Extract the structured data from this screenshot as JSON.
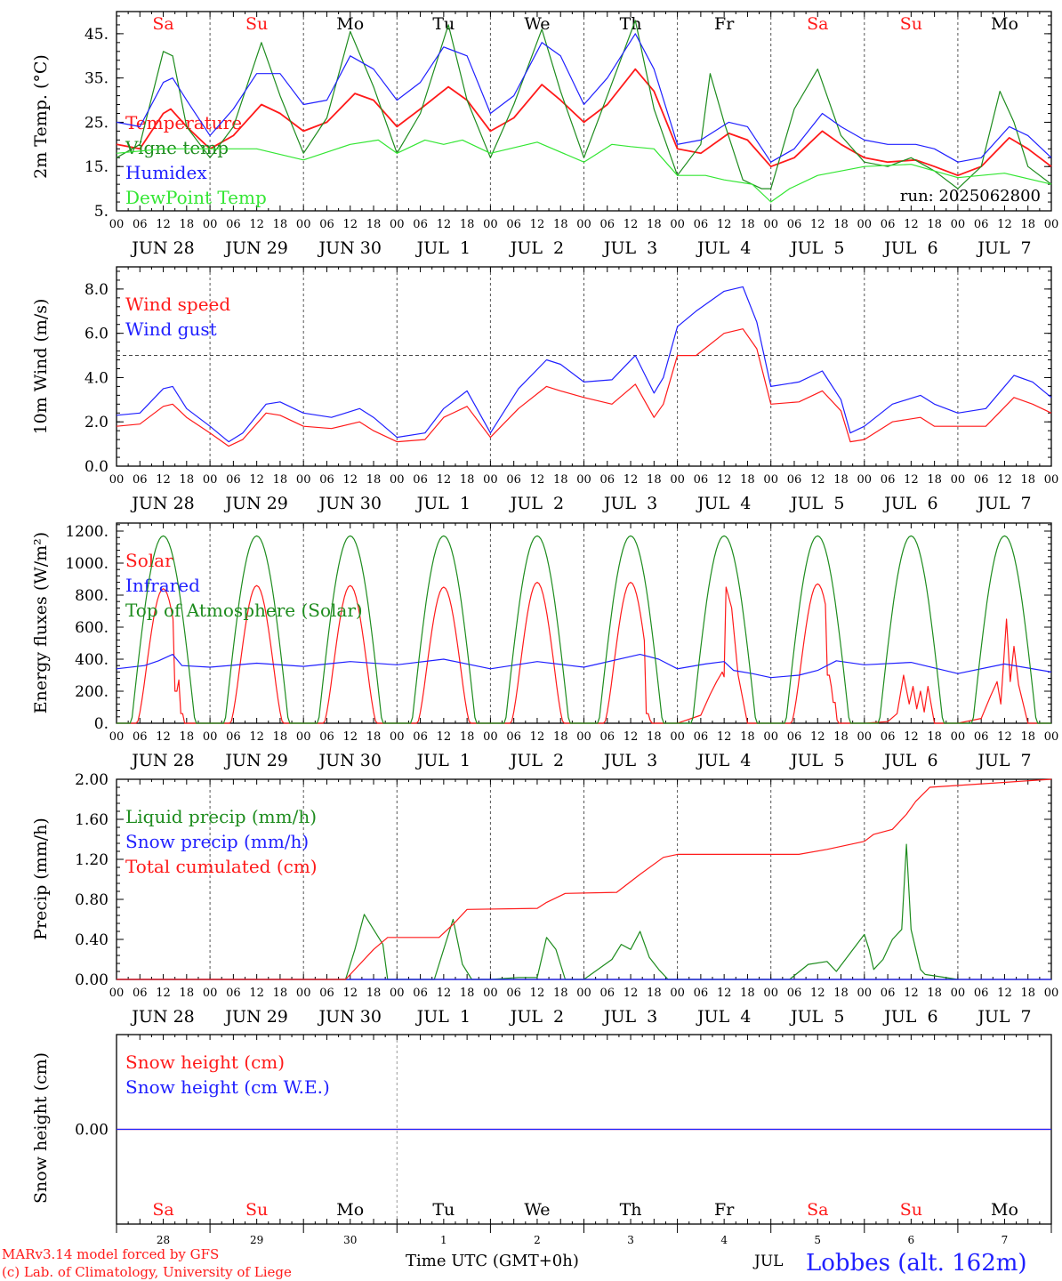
{
  "colors": {
    "red": "#ff1a1a",
    "green": "#1e8c1e",
    "blue": "#2020ff",
    "light_green": "#33e633",
    "black": "#000000",
    "grid": "#444444"
  },
  "x_axis": {
    "hour_ticks": [
      "00",
      "06",
      "12",
      "18"
    ],
    "day_labels": [
      "JUN 28",
      "JUN 29",
      "JUN 30",
      "JUL  1",
      "JUL  2",
      "JUL  3",
      "JUL  4",
      "JUL  5",
      "JUL  6",
      "JUL  7"
    ],
    "weekdays": [
      "Sa",
      "Su",
      "Mo",
      "Tu",
      "We",
      "Th",
      "Fr",
      "Sa",
      "Su",
      "Mo"
    ],
    "weekend_index": [
      0,
      1,
      7,
      8
    ],
    "bottom_day_numbers": [
      "28",
      "29",
      "30",
      "1",
      "2",
      "3",
      "4",
      "5",
      "6",
      "7"
    ],
    "month_label": "JUL",
    "title": "Time UTC (GMT+0h)"
  },
  "credits": {
    "line1": "MARv3.14 model forced by GFS",
    "line2": "(c) Lab. of Climatology, University of Liege"
  },
  "station": "Lobbes (alt. 162m)",
  "chart_data": [
    {
      "type": "line",
      "ylabel": "2m Temp. (°C)",
      "ylim": [
        5,
        50
      ],
      "yticks": [
        5,
        15,
        25,
        35,
        45
      ],
      "ytick_labels": [
        "5.",
        "15.",
        "25.",
        "35.",
        "45."
      ],
      "run": "run: 2025062800",
      "x_unit": "days since JUN 28 00 UTC",
      "series": [
        {
          "name": "Temperature",
          "color": "#ff1a1a",
          "x": [
            0,
            0.25,
            0.5,
            0.58,
            0.75,
            1,
            1.25,
            1.55,
            1.75,
            2,
            2.25,
            2.55,
            2.75,
            3,
            3.25,
            3.55,
            3.75,
            4,
            4.25,
            4.55,
            4.75,
            5,
            5.25,
            5.55,
            5.75,
            6,
            6.25,
            6.55,
            6.75,
            7,
            7.25,
            7.55,
            7.75,
            8,
            8.25,
            8.55,
            8.75,
            9,
            9.25,
            9.55,
            9.75,
            10
          ],
          "y": [
            20,
            19,
            27,
            28,
            24,
            19,
            22,
            29,
            27,
            23,
            25,
            31.5,
            30,
            24,
            28,
            33,
            30,
            23,
            26,
            33.5,
            30,
            25,
            29,
            37,
            32,
            19,
            18,
            22.5,
            21,
            15,
            17,
            23,
            20,
            17,
            16,
            16.5,
            15,
            13,
            15,
            21.5,
            19,
            15
          ]
        },
        {
          "name": "Vigne temp",
          "color": "#1e8c1e",
          "x": [
            0,
            0.25,
            0.5,
            0.6,
            0.75,
            1,
            1.25,
            1.55,
            1.75,
            2,
            2.25,
            2.5,
            2.75,
            3,
            3.25,
            3.55,
            3.75,
            4,
            4.25,
            4.55,
            4.75,
            5,
            5.25,
            5.55,
            5.75,
            6,
            6.25,
            6.35,
            6.5,
            6.7,
            6.9,
            7,
            7.25,
            7.5,
            7.75,
            8,
            8.25,
            8.5,
            8.75,
            9,
            9.25,
            9.45,
            9.6,
            9.75,
            10
          ],
          "y": [
            17,
            20,
            41,
            40,
            24,
            17,
            24,
            43,
            31,
            18,
            26,
            45.5,
            33,
            18,
            27,
            47,
            30,
            17,
            29,
            46,
            32,
            17,
            31,
            48,
            28,
            13,
            20,
            36,
            25,
            12,
            10,
            10,
            28,
            37,
            22,
            16,
            15,
            17,
            14,
            10,
            15,
            32,
            25,
            15,
            11
          ]
        },
        {
          "name": "Humidex",
          "color": "#2020ff",
          "x": [
            0,
            0.25,
            0.5,
            0.6,
            0.75,
            1,
            1.25,
            1.5,
            1.75,
            2,
            2.25,
            2.5,
            2.75,
            3,
            3.25,
            3.5,
            3.75,
            4,
            4.25,
            4.55,
            4.75,
            5,
            5.25,
            5.55,
            5.75,
            6,
            6.25,
            6.55,
            6.75,
            7,
            7.25,
            7.55,
            7.75,
            8,
            8.25,
            8.55,
            8.75,
            9,
            9.25,
            9.55,
            9.75,
            10
          ],
          "y": [
            25,
            24,
            34,
            35,
            30,
            22,
            28,
            36,
            36,
            29,
            30,
            40,
            37,
            30,
            34,
            42,
            40,
            27,
            31,
            43,
            40,
            29,
            35,
            45,
            37,
            20,
            21,
            25,
            24,
            16,
            19,
            27,
            24,
            21,
            20,
            20,
            19,
            16,
            17,
            24,
            22,
            17
          ]
        },
        {
          "name": "DewPoint Temp",
          "color": "#33e633",
          "x": [
            0,
            0.5,
            1,
            1.5,
            2,
            2.5,
            2.8,
            3,
            3.3,
            3.5,
            3.7,
            4,
            4.5,
            5,
            5.3,
            5.5,
            5.75,
            6,
            6.3,
            6.5,
            6.8,
            7,
            7.2,
            7.5,
            8,
            8.5,
            9,
            9.5,
            10
          ],
          "y": [
            18,
            19,
            19,
            19,
            16.5,
            20,
            21,
            18,
            21,
            20,
            21,
            18,
            20.5,
            16,
            20,
            19.5,
            19,
            13,
            13,
            12,
            11,
            7,
            10,
            13,
            15,
            15.5,
            12.5,
            13.5,
            11
          ]
        }
      ]
    },
    {
      "type": "line",
      "ylabel": "10m Wind (m/s)",
      "ylim": [
        0,
        9
      ],
      "yticks": [
        0,
        2,
        4,
        6,
        8
      ],
      "ytick_labels": [
        "0.0",
        "2.0",
        "4.0",
        "6.0",
        "8.0"
      ],
      "reference_line": 5.0,
      "x_unit": "days since JUN 28 00 UTC",
      "series": [
        {
          "name": "Wind speed",
          "color": "#ff1a1a",
          "x": [
            0,
            0.25,
            0.5,
            0.6,
            0.75,
            1,
            1.2,
            1.35,
            1.6,
            1.75,
            2,
            2.3,
            2.6,
            2.75,
            3,
            3.3,
            3.5,
            3.75,
            4,
            4.3,
            4.6,
            4.75,
            5,
            5.3,
            5.55,
            5.75,
            5.85,
            6,
            6.2,
            6.5,
            6.7,
            6.85,
            7,
            7.3,
            7.55,
            7.75,
            7.85,
            8,
            8.3,
            8.6,
            8.75,
            9,
            9.3,
            9.6,
            9.8,
            10
          ],
          "y": [
            1.8,
            1.9,
            2.7,
            2.8,
            2.2,
            1.5,
            0.9,
            1.2,
            2.4,
            2.3,
            1.8,
            1.7,
            2.0,
            1.6,
            1.1,
            1.2,
            2.2,
            2.7,
            1.3,
            2.6,
            3.6,
            3.4,
            3.1,
            2.8,
            3.7,
            2.2,
            2.8,
            5.0,
            5.0,
            6.0,
            6.2,
            5.3,
            2.8,
            2.9,
            3.4,
            2.5,
            1.1,
            1.2,
            2.0,
            2.2,
            1.8,
            1.8,
            1.8,
            3.1,
            2.8,
            2.4
          ]
        },
        {
          "name": "Wind gust",
          "color": "#2020ff",
          "x": [
            0,
            0.25,
            0.5,
            0.6,
            0.75,
            1,
            1.2,
            1.35,
            1.6,
            1.75,
            2,
            2.3,
            2.6,
            2.75,
            3,
            3.3,
            3.5,
            3.75,
            4,
            4.3,
            4.6,
            4.75,
            5,
            5.3,
            5.55,
            5.75,
            5.85,
            6,
            6.2,
            6.5,
            6.7,
            6.85,
            7,
            7.3,
            7.55,
            7.75,
            7.85,
            8,
            8.3,
            8.6,
            8.75,
            9,
            9.3,
            9.6,
            9.8,
            10
          ],
          "y": [
            2.3,
            2.4,
            3.5,
            3.6,
            2.6,
            1.8,
            1.1,
            1.5,
            2.8,
            2.9,
            2.4,
            2.2,
            2.6,
            2.2,
            1.3,
            1.5,
            2.6,
            3.4,
            1.5,
            3.5,
            4.8,
            4.6,
            3.8,
            3.9,
            5.0,
            3.3,
            4.0,
            6.3,
            7.0,
            7.9,
            8.1,
            6.5,
            3.6,
            3.8,
            4.3,
            3.0,
            1.5,
            1.8,
            2.8,
            3.2,
            2.8,
            2.4,
            2.6,
            4.1,
            3.8,
            3.1
          ]
        }
      ]
    },
    {
      "type": "line",
      "ylabel": "Energy fluxes (W/m²)",
      "ylim": [
        0,
        1250
      ],
      "yticks": [
        0,
        200,
        400,
        600,
        800,
        1000,
        1200
      ],
      "ytick_labels": [
        "0.",
        "200.",
        "400.",
        "600.",
        "800.",
        "1000.",
        "1200."
      ],
      "x_unit": "days since JUN 28 00 UTC",
      "series": [
        {
          "name": "Solar",
          "color": "#ff1a1a",
          "peaks": [
            {
              "day": 0,
              "max": 840,
              "cut": 0.62,
              "after": [
                200,
                270,
                60
              ]
            },
            {
              "day": 1,
              "max": 860
            },
            {
              "day": 2,
              "max": 860
            },
            {
              "day": 3,
              "max": 850
            },
            {
              "day": 4,
              "max": 880
            },
            {
              "day": 5,
              "max": 880,
              "cut": 0.66,
              "after": [
                60,
                20
              ]
            },
            {
              "day": 6,
              "max": 850,
              "spiky": [
                0.25,
                50,
                0.35,
                180,
                0.42,
                260,
                0.48,
                320,
                0.5,
                290,
                0.52,
                850,
                0.58,
                720,
                0.65,
                300,
                0.75,
                0
              ]
            },
            {
              "day": 7,
              "max": 870,
              "cut": 0.6,
              "after": [
                300,
                230,
                130,
                20
              ]
            },
            {
              "day": 8,
              "max": 300,
              "spiky": [
                0.25,
                10,
                0.35,
                60,
                0.42,
                300,
                0.48,
                120,
                0.52,
                230,
                0.56,
                90,
                0.6,
                200,
                0.64,
                70,
                0.68,
                230,
                0.75,
                0
              ]
            },
            {
              "day": 9,
              "max": 650,
              "spiky": [
                0.25,
                30,
                0.35,
                170,
                0.42,
                260,
                0.46,
                120,
                0.52,
                650,
                0.56,
                260,
                0.6,
                480,
                0.65,
                240,
                0.75,
                0
              ]
            }
          ]
        },
        {
          "name": "Infrared",
          "color": "#2020ff",
          "x": [
            0,
            0.3,
            0.45,
            0.6,
            0.7,
            1,
            1.5,
            2,
            2.5,
            3,
            3.5,
            4,
            4.5,
            5,
            5.6,
            5.8,
            6,
            6.3,
            6.5,
            6.6,
            6.8,
            7,
            7.3,
            7.5,
            7.7,
            8,
            8.5,
            9,
            9.5,
            10
          ],
          "y": [
            340,
            360,
            390,
            430,
            360,
            350,
            375,
            355,
            385,
            365,
            400,
            340,
            385,
            350,
            430,
            400,
            340,
            370,
            385,
            330,
            310,
            285,
            300,
            330,
            390,
            365,
            380,
            310,
            370,
            320
          ]
        },
        {
          "name": "Top of Atmosphere (Solar)",
          "color": "#1e8c1e",
          "day_max": 1170,
          "sunrise": 0.16,
          "sunset": 0.84
        }
      ]
    },
    {
      "type": "line",
      "ylabel": "Precip (mm/h)",
      "ylim": [
        0,
        2.0
      ],
      "yticks": [
        0,
        0.4,
        0.8,
        1.2,
        1.6,
        2.0
      ],
      "ytick_labels": [
        "0.00",
        "0.40",
        "0.80",
        "1.20",
        "1.60",
        "2.00"
      ],
      "x_unit": "days since JUN 28 00 UTC",
      "series": [
        {
          "name": "Liquid precip (mm/h)",
          "color": "#1e8c1e",
          "x": [
            0,
            2.45,
            2.55,
            2.65,
            2.75,
            2.85,
            2.9,
            3.4,
            3.5,
            3.6,
            3.7,
            3.8,
            4,
            4.3,
            4.5,
            4.6,
            4.7,
            4.8,
            5,
            5.3,
            5.4,
            5.5,
            5.6,
            5.7,
            5.8,
            5.9,
            6,
            6.3,
            7.2,
            7.4,
            7.6,
            7.7,
            8,
            8.05,
            8.1,
            8.2,
            8.3,
            8.4,
            8.45,
            8.5,
            8.6,
            8.65,
            9
          ],
          "y": [
            0,
            0,
            0.3,
            0.65,
            0.5,
            0.35,
            0,
            0,
            0.3,
            0.6,
            0.15,
            0,
            0,
            0.02,
            0.02,
            0.42,
            0.3,
            0,
            0,
            0.2,
            0.35,
            0.3,
            0.48,
            0.22,
            0.1,
            0,
            0,
            0,
            0,
            0.15,
            0.18,
            0.08,
            0.45,
            0.3,
            0.1,
            0.2,
            0.4,
            0.5,
            1.35,
            0.5,
            0.1,
            0.05,
            0
          ]
        },
        {
          "name": "Snow precip (mm/h)",
          "color": "#2020ff",
          "x": [
            0,
            10
          ],
          "y": [
            0,
            0
          ]
        },
        {
          "name": "Total cumulated (cm)",
          "color": "#ff1a1a",
          "x": [
            0,
            2.45,
            2.75,
            2.9,
            3.45,
            3.6,
            3.75,
            4.5,
            4.6,
            4.8,
            5.35,
            5.6,
            5.85,
            6,
            7.3,
            7.6,
            8,
            8.1,
            8.3,
            8.45,
            8.55,
            8.7,
            10
          ],
          "y": [
            0,
            0,
            0.3,
            0.42,
            0.42,
            0.55,
            0.7,
            0.71,
            0.77,
            0.86,
            0.87,
            1.05,
            1.22,
            1.25,
            1.25,
            1.3,
            1.38,
            1.45,
            1.5,
            1.65,
            1.78,
            1.92,
            2.0
          ]
        }
      ]
    },
    {
      "type": "line",
      "ylabel": "Snow height (cm)",
      "ytick_labels": [
        "0.00"
      ],
      "x_unit": "days since JUN 28 00 UTC",
      "series": [
        {
          "name": "Snow height (cm)",
          "color": "#ff1a1a",
          "x": [
            0,
            10
          ],
          "y": [
            0,
            0
          ]
        },
        {
          "name": "Snow height (cm W.E.)",
          "color": "#2020ff",
          "x": [
            0,
            10
          ],
          "y": [
            0,
            0
          ]
        }
      ]
    }
  ]
}
